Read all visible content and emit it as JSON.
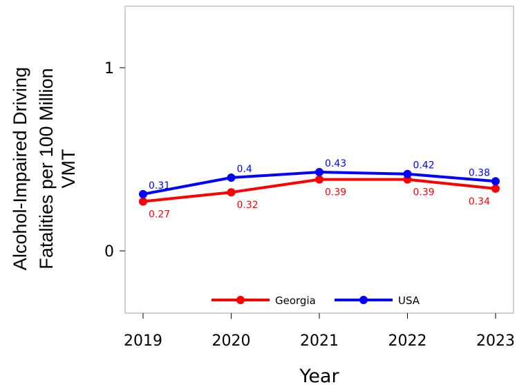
{
  "chart_data": {
    "type": "line",
    "title": "",
    "xlabel": "Year",
    "ylabel_lines": [
      "Alcohol-Impaired Driving",
      "Fatalities per 100 Million",
      "VMT"
    ],
    "categories": [
      "2019",
      "2020",
      "2021",
      "2022",
      "2023"
    ],
    "yticks": [
      0,
      1
    ],
    "ytick_labels": [
      "0",
      "1"
    ],
    "ylim": [
      -0.33,
      1.33
    ],
    "grid": false,
    "legend_position": "bottom-center",
    "series": [
      {
        "name": "Georgia",
        "color": "#ff0000",
        "values": [
          0.27,
          0.32,
          0.39,
          0.39,
          0.34
        ],
        "labels": [
          "0.27",
          "0.32",
          "0.39",
          "0.39",
          "0.34"
        ],
        "label_position": "below"
      },
      {
        "name": "USA",
        "color": "#0000ff",
        "values": [
          0.31,
          0.4,
          0.43,
          0.42,
          0.38
        ],
        "labels": [
          "0.31",
          "0.4",
          "0.43",
          "0.42",
          "0.38"
        ],
        "label_position": "above"
      }
    ]
  }
}
